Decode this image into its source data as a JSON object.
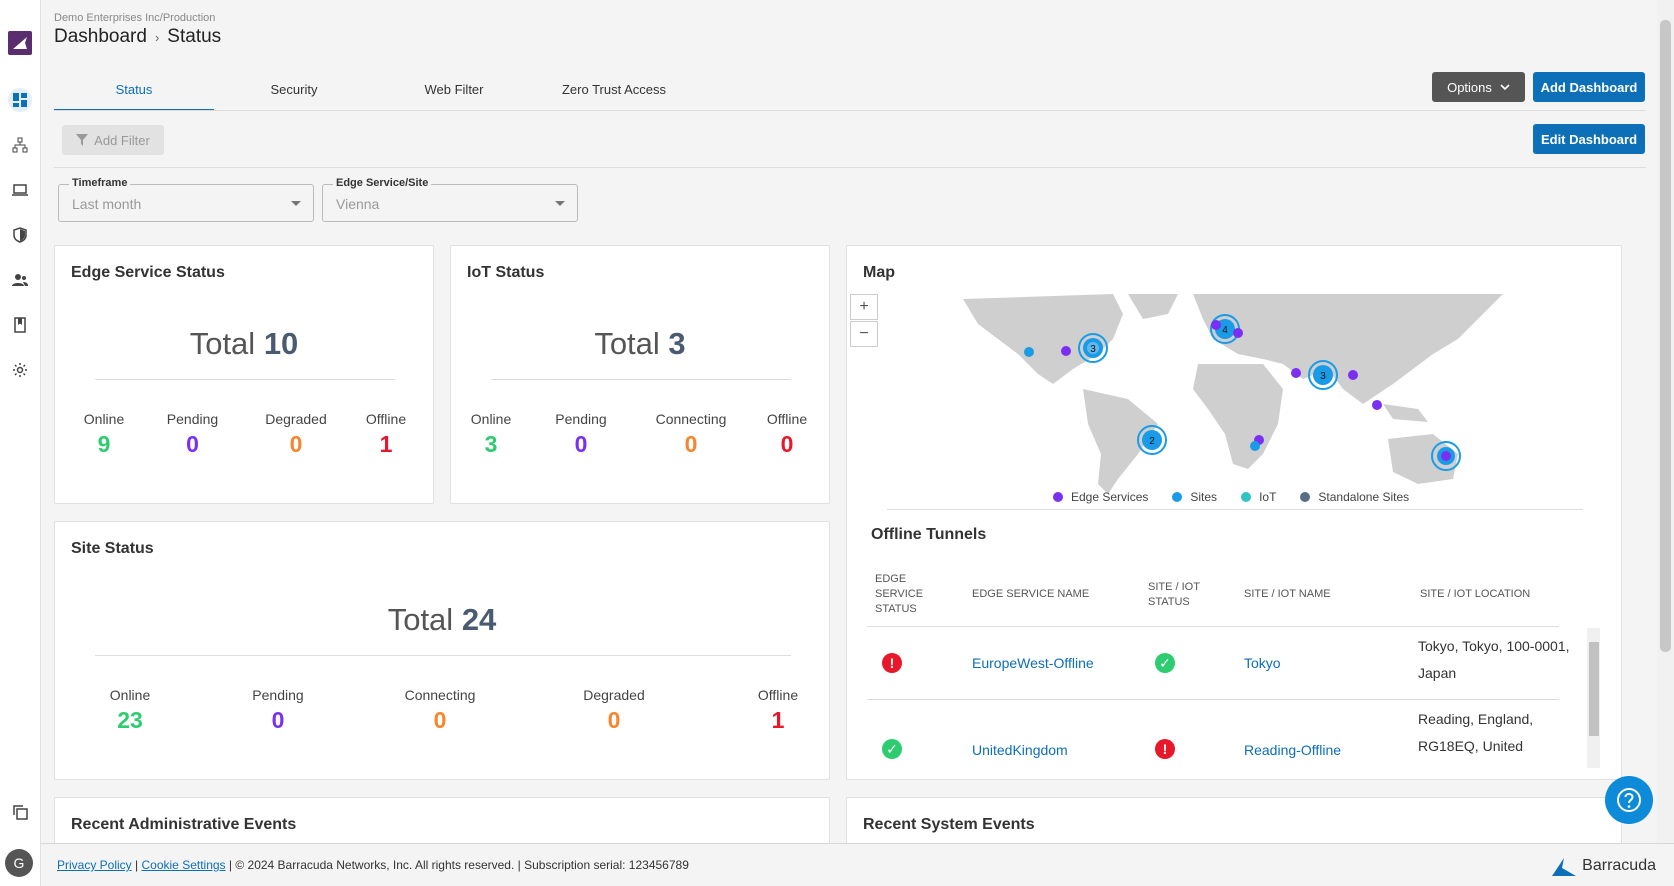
{
  "header": {
    "org_path": "Demo Enterprises Inc/Production",
    "breadcrumb": [
      "Dashboard",
      "Status"
    ],
    "breadcrumb_sep": "›"
  },
  "tabs": [
    {
      "label": "Status",
      "active": true
    },
    {
      "label": "Security",
      "active": false
    },
    {
      "label": "Web Filter",
      "active": false
    },
    {
      "label": "Zero Trust Access",
      "active": false
    }
  ],
  "toolbar": {
    "options_label": "Options",
    "add_dashboard_label": "Add Dashboard",
    "edit_dashboard_label": "Edit Dashboard",
    "add_filter_label": "Add Filter"
  },
  "filters": {
    "timeframe": {
      "label": "Timeframe",
      "value": "Last month"
    },
    "edge_site": {
      "label": "Edge Service/Site",
      "value": "Vienna"
    }
  },
  "edge_service_status": {
    "title": "Edge Service Status",
    "total_label": "Total",
    "total": "10",
    "stats": [
      {
        "label": "Online",
        "value": "9"
      },
      {
        "label": "Pending",
        "value": "0"
      },
      {
        "label": "Degraded",
        "value": "0"
      },
      {
        "label": "Offline",
        "value": "1"
      }
    ]
  },
  "iot_status": {
    "title": "IoT Status",
    "total_label": "Total",
    "total": "3",
    "stats": [
      {
        "label": "Online",
        "value": "3"
      },
      {
        "label": "Pending",
        "value": "0"
      },
      {
        "label": "Connecting",
        "value": "0"
      },
      {
        "label": "Offline",
        "value": "0"
      }
    ]
  },
  "site_status": {
    "title": "Site Status",
    "total_label": "Total",
    "total": "24",
    "stats": [
      {
        "label": "Online",
        "value": "23"
      },
      {
        "label": "Pending",
        "value": "0"
      },
      {
        "label": "Connecting",
        "value": "0"
      },
      {
        "label": "Degraded",
        "value": "0"
      },
      {
        "label": "Offline",
        "value": "1"
      }
    ]
  },
  "map": {
    "title": "Map",
    "zoom_in": "+",
    "zoom_out": "−",
    "clusters": [
      "3",
      "4",
      "3",
      "2"
    ],
    "legend": [
      {
        "label": "Edge Services",
        "color": "#7b2ff0"
      },
      {
        "label": "Sites",
        "color": "#1a9be8"
      },
      {
        "label": "IoT",
        "color": "#2ec4c4"
      },
      {
        "label": "Standalone Sites",
        "color": "#5a6d88"
      }
    ]
  },
  "offline_tunnels": {
    "title": "Offline Tunnels",
    "columns": [
      "EDGE SERVICE STATUS",
      "EDGE SERVICE NAME",
      "SITE / IOT STATUS",
      "SITE / IOT NAME",
      "SITE / IOT LOCATION"
    ],
    "rows": [
      {
        "edge_status": "error",
        "edge_name": "EuropeWest-Offline",
        "site_status": "ok",
        "site_name": "Tokyo",
        "location_line1": "Tokyo, Tokyo, 100-0001,",
        "location_line2": "Japan"
      },
      {
        "edge_status": "ok",
        "edge_name": "UnitedKingdom",
        "site_status": "error",
        "site_name": "Reading-Offline",
        "location_line1": "Reading, England,",
        "location_line2": "RG18EQ, United"
      }
    ]
  },
  "recent_admin_events": {
    "title": "Recent Administrative Events"
  },
  "recent_system_events": {
    "title": "Recent System Events"
  },
  "user": {
    "initial": "G"
  },
  "footer": {
    "privacy": "Privacy Policy",
    "sep": "|",
    "cookies": "Cookie Settings",
    "copyright": "| © 2024 Barracuda Networks, Inc. All rights reserved. | Subscription serial: 123456789",
    "brand": "Barracuda"
  },
  "colors": {
    "accent": "#0d6fb8",
    "online": "#2ecc71",
    "pending": "#7b2ff0",
    "degraded": "#f5862d",
    "offline": "#e8172a"
  }
}
